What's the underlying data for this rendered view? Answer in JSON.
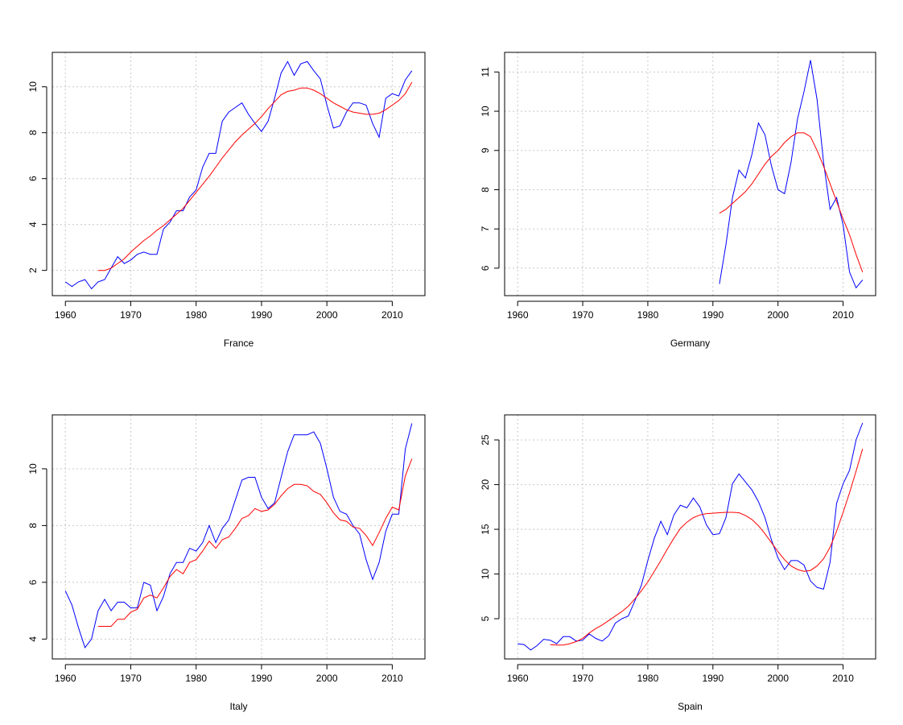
{
  "colors": {
    "actual": "#0000ff",
    "smooth": "#ff0000"
  },
  "chart_data": [
    {
      "type": "line",
      "title": "France",
      "xlim": [
        1958,
        2015
      ],
      "ylim": [
        0.9,
        11.5
      ],
      "xticks": [
        1960,
        1970,
        1980,
        1990,
        2000,
        2010
      ],
      "yticks": [
        2,
        4,
        6,
        8,
        10
      ],
      "series": [
        {
          "color": "#0000ff",
          "x": [
            1960,
            1961,
            1962,
            1963,
            1964,
            1965,
            1966,
            1967,
            1968,
            1969,
            1970,
            1971,
            1972,
            1973,
            1974,
            1975,
            1976,
            1977,
            1978,
            1979,
            1980,
            1981,
            1982,
            1983,
            1984,
            1985,
            1986,
            1987,
            1988,
            1989,
            1990,
            1991,
            1992,
            1993,
            1994,
            1995,
            1996,
            1997,
            1998,
            1999,
            2000,
            2001,
            2002,
            2003,
            2004,
            2005,
            2006,
            2007,
            2008,
            2009,
            2010,
            2011,
            2012,
            2013
          ],
          "y": [
            1.5,
            1.3,
            1.5,
            1.6,
            1.2,
            1.5,
            1.6,
            2.1,
            2.6,
            2.3,
            2.45,
            2.7,
            2.8,
            2.7,
            2.7,
            3.8,
            4.1,
            4.6,
            4.6,
            5.2,
            5.5,
            6.5,
            7.1,
            7.1,
            8.5,
            8.9,
            9.1,
            9.3,
            8.8,
            8.4,
            8.05,
            8.5,
            9.5,
            10.6,
            11.1,
            10.5,
            11.0,
            11.1,
            10.7,
            10.35,
            9.2,
            8.2,
            8.3,
            8.9,
            9.3,
            9.3,
            9.2,
            8.4,
            7.8,
            9.5,
            9.7,
            9.6,
            10.3,
            10.7
          ]
        },
        {
          "color": "#ff0000",
          "x": [
            1965,
            1966,
            1967,
            1968,
            1969,
            1970,
            1971,
            1972,
            1973,
            1974,
            1975,
            1976,
            1977,
            1978,
            1979,
            1980,
            1981,
            1982,
            1983,
            1984,
            1985,
            1986,
            1987,
            1988,
            1989,
            1990,
            1991,
            1992,
            1993,
            1994,
            1995,
            1996,
            1997,
            1998,
            1999,
            2000,
            2001,
            2002,
            2003,
            2004,
            2005,
            2006,
            2007,
            2008,
            2009,
            2010,
            2011,
            2012,
            2013
          ],
          "y": [
            2.0,
            2.0,
            2.1,
            2.3,
            2.5,
            2.8,
            3.05,
            3.3,
            3.5,
            3.75,
            3.95,
            4.2,
            4.45,
            4.7,
            5.05,
            5.4,
            5.75,
            6.1,
            6.5,
            6.9,
            7.25,
            7.6,
            7.9,
            8.15,
            8.4,
            8.7,
            9.05,
            9.35,
            9.65,
            9.8,
            9.85,
            9.95,
            9.95,
            9.85,
            9.7,
            9.5,
            9.3,
            9.15,
            9.0,
            8.9,
            8.85,
            8.8,
            8.8,
            8.85,
            9.0,
            9.2,
            9.4,
            9.7,
            10.2
          ]
        }
      ]
    },
    {
      "type": "line",
      "title": "Germany",
      "xlim": [
        1958,
        2015
      ],
      "ylim": [
        5.3,
        11.5
      ],
      "xticks": [
        1960,
        1970,
        1980,
        1990,
        2000,
        2010
      ],
      "yticks": [
        6,
        7,
        8,
        9,
        10,
        11
      ],
      "series": [
        {
          "color": "#0000ff",
          "x": [
            1991,
            1992,
            1993,
            1994,
            1995,
            1996,
            1997,
            1998,
            1999,
            2000,
            2001,
            2002,
            2003,
            2004,
            2005,
            2006,
            2007,
            2008,
            2009,
            2010,
            2011,
            2012,
            2013
          ],
          "y": [
            5.6,
            6.6,
            7.8,
            8.5,
            8.3,
            8.9,
            9.7,
            9.4,
            8.6,
            8.0,
            7.9,
            8.7,
            9.8,
            10.5,
            11.3,
            10.3,
            8.7,
            7.5,
            7.8,
            7.1,
            5.9,
            5.5,
            5.7
          ]
        },
        {
          "color": "#ff0000",
          "x": [
            1991,
            1992,
            1993,
            1994,
            1995,
            1996,
            1997,
            1998,
            1999,
            2000,
            2001,
            2002,
            2003,
            2004,
            2005,
            2006,
            2007,
            2008,
            2009,
            2010,
            2011,
            2012,
            2013
          ],
          "y": [
            7.4,
            7.5,
            7.65,
            7.8,
            7.95,
            8.15,
            8.4,
            8.65,
            8.85,
            9.0,
            9.2,
            9.35,
            9.45,
            9.45,
            9.35,
            9.0,
            8.6,
            8.15,
            7.7,
            7.25,
            6.85,
            6.35,
            5.9
          ]
        }
      ]
    },
    {
      "type": "line",
      "title": "Italy",
      "xlim": [
        1958,
        2015
      ],
      "ylim": [
        3.3,
        11.9
      ],
      "xticks": [
        1960,
        1970,
        1980,
        1990,
        2000,
        2010
      ],
      "yticks": [
        4,
        6,
        8,
        10
      ],
      "series": [
        {
          "color": "#0000ff",
          "x": [
            1960,
            1961,
            1962,
            1963,
            1964,
            1965,
            1966,
            1967,
            1968,
            1969,
            1970,
            1971,
            1972,
            1973,
            1974,
            1975,
            1976,
            1977,
            1978,
            1979,
            1980,
            1981,
            1982,
            1983,
            1984,
            1985,
            1986,
            1987,
            1988,
            1989,
            1990,
            1991,
            1992,
            1993,
            1994,
            1995,
            1996,
            1997,
            1998,
            1999,
            2000,
            2001,
            2002,
            2003,
            2004,
            2005,
            2006,
            2007,
            2008,
            2009,
            2010,
            2011,
            2012,
            2013
          ],
          "y": [
            5.7,
            5.2,
            4.4,
            3.7,
            4.0,
            5.0,
            5.4,
            5.0,
            5.3,
            5.3,
            5.1,
            5.1,
            6.0,
            5.9,
            5.0,
            5.5,
            6.3,
            6.7,
            6.7,
            7.2,
            7.1,
            7.4,
            8.0,
            7.4,
            7.9,
            8.2,
            8.9,
            9.6,
            9.7,
            9.7,
            9.0,
            8.6,
            8.8,
            9.7,
            10.6,
            11.2,
            11.2,
            11.2,
            11.3,
            10.9,
            10.0,
            9.0,
            8.5,
            8.4,
            8.0,
            7.7,
            6.8,
            6.1,
            6.7,
            7.8,
            8.4,
            8.4,
            10.7,
            11.6
          ]
        },
        {
          "color": "#ff0000",
          "x": [
            1965,
            1966,
            1967,
            1968,
            1969,
            1970,
            1971,
            1972,
            1973,
            1974,
            1975,
            1976,
            1977,
            1978,
            1979,
            1980,
            1981,
            1982,
            1983,
            1984,
            1985,
            1986,
            1987,
            1988,
            1989,
            1990,
            1991,
            1992,
            1993,
            1994,
            1995,
            1996,
            1997,
            1998,
            1999,
            2000,
            2001,
            2002,
            2003,
            2004,
            2005,
            2006,
            2007,
            2008,
            2009,
            2010,
            2011,
            2012,
            2013
          ],
          "y": [
            4.45,
            4.45,
            4.45,
            4.7,
            4.7,
            4.95,
            5.05,
            5.45,
            5.55,
            5.45,
            5.8,
            6.2,
            6.45,
            6.3,
            6.7,
            6.8,
            7.1,
            7.45,
            7.2,
            7.5,
            7.6,
            7.9,
            8.25,
            8.35,
            8.6,
            8.5,
            8.55,
            8.75,
            9.05,
            9.3,
            9.45,
            9.45,
            9.4,
            9.2,
            9.1,
            8.8,
            8.45,
            8.2,
            8.15,
            7.95,
            7.9,
            7.65,
            7.3,
            7.75,
            8.25,
            8.65,
            8.55,
            9.75,
            10.35
          ]
        }
      ]
    },
    {
      "type": "line",
      "title": "Spain",
      "xlim": [
        1958,
        2015
      ],
      "ylim": [
        0.5,
        27.8
      ],
      "xticks": [
        1960,
        1970,
        1980,
        1990,
        2000,
        2010
      ],
      "yticks": [
        5,
        10,
        15,
        20,
        25
      ],
      "series": [
        {
          "color": "#0000ff",
          "x": [
            1960,
            1961,
            1962,
            1963,
            1964,
            1965,
            1966,
            1967,
            1968,
            1969,
            1970,
            1971,
            1972,
            1973,
            1974,
            1975,
            1976,
            1977,
            1978,
            1979,
            1980,
            1981,
            1982,
            1983,
            1984,
            1985,
            1986,
            1987,
            1988,
            1989,
            1990,
            1991,
            1992,
            1993,
            1994,
            1995,
            1996,
            1997,
            1998,
            1999,
            2000,
            2001,
            2002,
            2003,
            2004,
            2005,
            2006,
            2007,
            2008,
            2009,
            2010,
            2011,
            2012,
            2013
          ],
          "y": [
            2.2,
            2.1,
            1.5,
            2.0,
            2.7,
            2.6,
            2.2,
            3.0,
            3.0,
            2.5,
            2.6,
            3.3,
            2.8,
            2.5,
            3.1,
            4.5,
            5.0,
            5.3,
            7.0,
            8.7,
            11.5,
            14.0,
            15.9,
            14.4,
            16.6,
            17.7,
            17.4,
            18.5,
            17.5,
            15.5,
            14.4,
            14.5,
            16.3,
            20.1,
            21.2,
            20.3,
            19.4,
            18.1,
            16.3,
            13.8,
            11.8,
            10.5,
            11.5,
            11.5,
            11.0,
            9.2,
            8.5,
            8.3,
            11.3,
            17.9,
            20.1,
            21.6,
            25.0,
            26.9
          ]
        },
        {
          "color": "#ff0000",
          "x": [
            1965,
            1966,
            1967,
            1968,
            1969,
            1970,
            1971,
            1972,
            1973,
            1974,
            1975,
            1976,
            1977,
            1978,
            1979,
            1980,
            1981,
            1982,
            1983,
            1984,
            1985,
            1986,
            1987,
            1988,
            1989,
            1990,
            1991,
            1992,
            1993,
            1994,
            1995,
            1996,
            1997,
            1998,
            1999,
            2000,
            2001,
            2002,
            2003,
            2004,
            2005,
            2006,
            2007,
            2008,
            2009,
            2010,
            2011,
            2012,
            2013
          ],
          "y": [
            2.1,
            2.05,
            2.05,
            2.2,
            2.45,
            2.8,
            3.4,
            3.9,
            4.3,
            4.8,
            5.3,
            5.8,
            6.4,
            7.2,
            8.1,
            9.1,
            10.3,
            11.5,
            12.8,
            14.0,
            15.1,
            15.8,
            16.3,
            16.6,
            16.75,
            16.8,
            16.85,
            16.9,
            16.9,
            16.85,
            16.55,
            16.1,
            15.4,
            14.5,
            13.5,
            12.5,
            11.6,
            10.9,
            10.5,
            10.3,
            10.4,
            10.9,
            11.7,
            13.0,
            14.8,
            16.9,
            19.1,
            21.5,
            24.0
          ]
        }
      ]
    }
  ]
}
